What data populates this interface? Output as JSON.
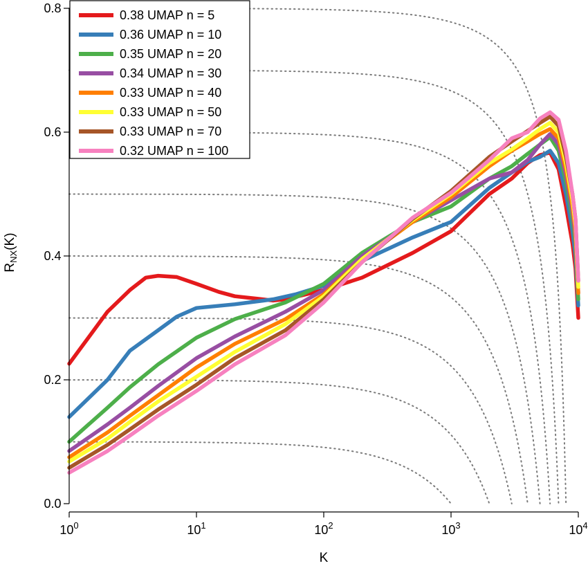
{
  "chart_data": {
    "type": "line",
    "title": "",
    "xlabel": "K",
    "ylabel": {
      "base": "R",
      "sub": "NX",
      "suffix": "(K)"
    },
    "xscale": "log10",
    "xlim": [
      1,
      10000
    ],
    "ylim": [
      0,
      0.8
    ],
    "xticks": [
      {
        "value": 1,
        "base": "10",
        "exp": "0"
      },
      {
        "value": 10,
        "base": "10",
        "exp": "1"
      },
      {
        "value": 100,
        "base": "10",
        "exp": "2"
      },
      {
        "value": 1000,
        "base": "10",
        "exp": "3"
      },
      {
        "value": 10000,
        "base": "10",
        "exp": "4"
      }
    ],
    "yticks": [
      {
        "value": 0.0,
        "label": "0.0"
      },
      {
        "value": 0.2,
        "label": "0.2"
      },
      {
        "value": 0.4,
        "label": "0.4"
      },
      {
        "value": 0.6,
        "label": "0.6"
      },
      {
        "value": 0.8,
        "label": "0.8"
      }
    ],
    "reference_levels": [
      0.1,
      0.2,
      0.3,
      0.4,
      0.5,
      0.6,
      0.7,
      0.8
    ],
    "reference_N": 10000,
    "legend_position": "top-left",
    "series": [
      {
        "name": "0.38 UMAP n = 5",
        "color": "#e41a1c",
        "points": [
          [
            1,
            0.226
          ],
          [
            2,
            0.31
          ],
          [
            3,
            0.345
          ],
          [
            4,
            0.365
          ],
          [
            5,
            0.368
          ],
          [
            7,
            0.366
          ],
          [
            10,
            0.355
          ],
          [
            15,
            0.342
          ],
          [
            20,
            0.335
          ],
          [
            30,
            0.331
          ],
          [
            40,
            0.328
          ],
          [
            50,
            0.33
          ],
          [
            100,
            0.345
          ],
          [
            200,
            0.365
          ],
          [
            500,
            0.405
          ],
          [
            1000,
            0.44
          ],
          [
            2000,
            0.5
          ],
          [
            3000,
            0.525
          ],
          [
            4000,
            0.55
          ],
          [
            5000,
            0.563
          ],
          [
            6000,
            0.567
          ],
          [
            7000,
            0.54
          ],
          [
            8000,
            0.48
          ],
          [
            9000,
            0.42
          ],
          [
            9500,
            0.38
          ],
          [
            10000,
            0.3
          ]
        ]
      },
      {
        "name": "0.36 UMAP n = 10",
        "color": "#377eb8",
        "points": [
          [
            1,
            0.14
          ],
          [
            2,
            0.2
          ],
          [
            3,
            0.247
          ],
          [
            5,
            0.28
          ],
          [
            7,
            0.302
          ],
          [
            10,
            0.316
          ],
          [
            20,
            0.322
          ],
          [
            40,
            0.33
          ],
          [
            60,
            0.338
          ],
          [
            100,
            0.352
          ],
          [
            200,
            0.392
          ],
          [
            500,
            0.43
          ],
          [
            1000,
            0.455
          ],
          [
            2000,
            0.51
          ],
          [
            3000,
            0.535
          ],
          [
            4000,
            0.552
          ],
          [
            5000,
            0.56
          ],
          [
            6000,
            0.57
          ],
          [
            7000,
            0.55
          ],
          [
            8000,
            0.5
          ],
          [
            9000,
            0.44
          ],
          [
            9500,
            0.4
          ],
          [
            10000,
            0.32
          ]
        ]
      },
      {
        "name": "0.35 UMAP n = 20",
        "color": "#4daf4a",
        "points": [
          [
            1,
            0.1
          ],
          [
            2,
            0.155
          ],
          [
            3,
            0.188
          ],
          [
            5,
            0.225
          ],
          [
            10,
            0.268
          ],
          [
            20,
            0.298
          ],
          [
            30,
            0.31
          ],
          [
            50,
            0.325
          ],
          [
            100,
            0.355
          ],
          [
            200,
            0.405
          ],
          [
            500,
            0.455
          ],
          [
            1000,
            0.48
          ],
          [
            2000,
            0.525
          ],
          [
            3000,
            0.545
          ],
          [
            4000,
            0.565
          ],
          [
            5000,
            0.58
          ],
          [
            6000,
            0.592
          ],
          [
            7000,
            0.57
          ],
          [
            8000,
            0.52
          ],
          [
            9000,
            0.46
          ],
          [
            9500,
            0.42
          ],
          [
            10000,
            0.33
          ]
        ]
      },
      {
        "name": "0.34 UMAP n = 30",
        "color": "#984ea3",
        "points": [
          [
            1,
            0.085
          ],
          [
            2,
            0.128
          ],
          [
            3,
            0.155
          ],
          [
            5,
            0.19
          ],
          [
            10,
            0.235
          ],
          [
            20,
            0.27
          ],
          [
            50,
            0.31
          ],
          [
            100,
            0.345
          ],
          [
            200,
            0.4
          ],
          [
            500,
            0.455
          ],
          [
            1000,
            0.49
          ],
          [
            2000,
            0.525
          ],
          [
            3000,
            0.535
          ],
          [
            4000,
            0.555
          ],
          [
            5000,
            0.58
          ],
          [
            6000,
            0.597
          ],
          [
            7000,
            0.58
          ],
          [
            8000,
            0.53
          ],
          [
            9000,
            0.47
          ],
          [
            9500,
            0.43
          ],
          [
            10000,
            0.34
          ]
        ]
      },
      {
        "name": "0.33 UMAP n = 40",
        "color": "#ff7f00",
        "points": [
          [
            1,
            0.075
          ],
          [
            2,
            0.115
          ],
          [
            3,
            0.142
          ],
          [
            5,
            0.175
          ],
          [
            10,
            0.22
          ],
          [
            20,
            0.258
          ],
          [
            50,
            0.298
          ],
          [
            100,
            0.338
          ],
          [
            200,
            0.395
          ],
          [
            500,
            0.455
          ],
          [
            1000,
            0.495
          ],
          [
            2000,
            0.545
          ],
          [
            3000,
            0.57
          ],
          [
            4000,
            0.585
          ],
          [
            5000,
            0.597
          ],
          [
            6000,
            0.605
          ],
          [
            7000,
            0.59
          ],
          [
            8000,
            0.54
          ],
          [
            9000,
            0.48
          ],
          [
            9500,
            0.44
          ],
          [
            10000,
            0.34
          ]
        ]
      },
      {
        "name": "0.33 UMAP n = 50",
        "color": "#ffff33",
        "points": [
          [
            1,
            0.068
          ],
          [
            2,
            0.105
          ],
          [
            3,
            0.132
          ],
          [
            5,
            0.165
          ],
          [
            10,
            0.205
          ],
          [
            20,
            0.245
          ],
          [
            50,
            0.29
          ],
          [
            100,
            0.335
          ],
          [
            200,
            0.395
          ],
          [
            500,
            0.458
          ],
          [
            1000,
            0.5
          ],
          [
            2000,
            0.55
          ],
          [
            3000,
            0.572
          ],
          [
            4000,
            0.59
          ],
          [
            5000,
            0.605
          ],
          [
            6000,
            0.615
          ],
          [
            7000,
            0.6
          ],
          [
            8000,
            0.55
          ],
          [
            9000,
            0.49
          ],
          [
            9500,
            0.45
          ],
          [
            10000,
            0.35
          ]
        ]
      },
      {
        "name": "0.33 UMAP n = 70",
        "color": "#a65628",
        "points": [
          [
            1,
            0.058
          ],
          [
            2,
            0.095
          ],
          [
            3,
            0.12
          ],
          [
            5,
            0.152
          ],
          [
            10,
            0.192
          ],
          [
            20,
            0.235
          ],
          [
            50,
            0.28
          ],
          [
            100,
            0.33
          ],
          [
            200,
            0.39
          ],
          [
            500,
            0.46
          ],
          [
            1000,
            0.505
          ],
          [
            2000,
            0.56
          ],
          [
            3000,
            0.585
          ],
          [
            4000,
            0.602
          ],
          [
            5000,
            0.615
          ],
          [
            6000,
            0.625
          ],
          [
            7000,
            0.61
          ],
          [
            8000,
            0.56
          ],
          [
            9000,
            0.5
          ],
          [
            9500,
            0.46
          ],
          [
            10000,
            0.36
          ]
        ]
      },
      {
        "name": "0.32 UMAP n = 100",
        "color": "#f781bf",
        "points": [
          [
            1,
            0.05
          ],
          [
            2,
            0.085
          ],
          [
            3,
            0.11
          ],
          [
            5,
            0.142
          ],
          [
            10,
            0.182
          ],
          [
            20,
            0.225
          ],
          [
            50,
            0.272
          ],
          [
            100,
            0.325
          ],
          [
            200,
            0.39
          ],
          [
            500,
            0.462
          ],
          [
            1000,
            0.502
          ],
          [
            2000,
            0.555
          ],
          [
            3000,
            0.59
          ],
          [
            4000,
            0.6
          ],
          [
            5000,
            0.622
          ],
          [
            6000,
            0.632
          ],
          [
            7000,
            0.62
          ],
          [
            8000,
            0.57
          ],
          [
            9000,
            0.5
          ],
          [
            9500,
            0.46
          ],
          [
            10000,
            0.36
          ]
        ]
      }
    ]
  }
}
